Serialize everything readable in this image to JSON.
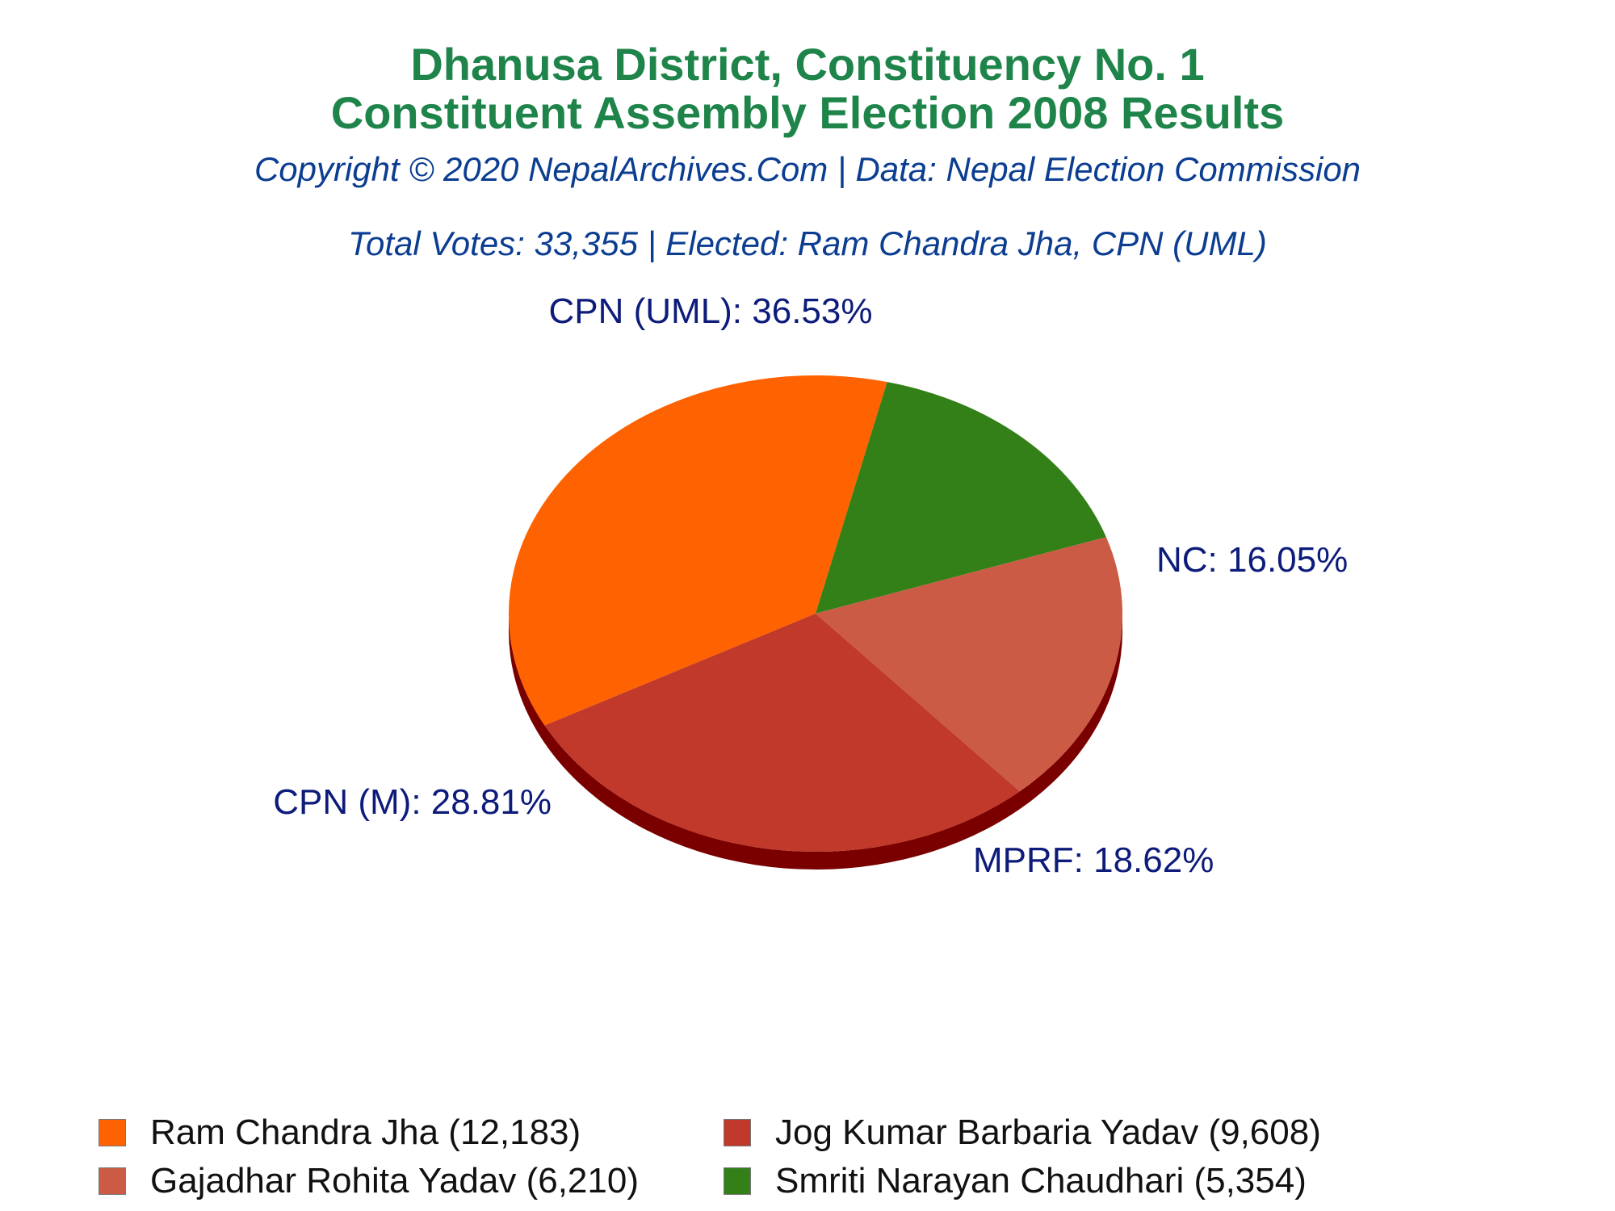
{
  "header": {
    "title_line1": "Dhanusa District, Constituency No. 1",
    "title_line2": "Constituent Assembly Election 2008 Results",
    "copyright": "Copyright © 2020 NepalArchives.Com | Data: Nepal Election Commission",
    "summary": "Total Votes: 33,355 | Elected: Ram Chandra Jha, CPN (UML)"
  },
  "chart_data": {
    "type": "pie",
    "slices": [
      {
        "label": "CPN (UML): 36.53%",
        "party": "CPN (UML)",
        "percent": 36.53,
        "candidate": "Ram Chandra Jha (12,183)",
        "votes": 12183,
        "color": "#ff6200"
      },
      {
        "label": "NC: 16.05%",
        "party": "NC",
        "percent": 16.05,
        "candidate": "Smriti Narayan Chaudhari (5,354)",
        "votes": 5354,
        "color": "#338018"
      },
      {
        "label": "MPRF: 18.62%",
        "party": "MPRF",
        "percent": 18.62,
        "candidate": "Gajadhar Rohita Yadav (6,210)",
        "votes": 6210,
        "color": "#cc5b45"
      },
      {
        "label": "CPN (M): 28.81%",
        "party": "CPN (M)",
        "percent": 28.81,
        "candidate": "Jog Kumar Barbaria Yadav (9,608)",
        "votes": 9608,
        "color": "#c0392b"
      }
    ],
    "label_color": "#0d1b7a",
    "shadow_color": "#7a0000",
    "legend": [
      "Ram Chandra Jha (12,183)",
      "Jog Kumar Barbaria Yadav (9,608)",
      "Gajadhar Rohita Yadav (6,210)",
      "Smriti Narayan Chaudhari (5,354)"
    ],
    "legend_colors": [
      "#ff6200",
      "#c0392b",
      "#cc5b45",
      "#338018"
    ]
  }
}
